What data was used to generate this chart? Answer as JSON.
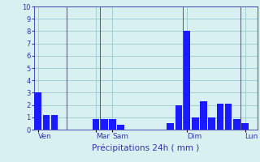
{
  "values": [
    3.0,
    1.2,
    1.2,
    0,
    0,
    0,
    0,
    0.85,
    0.85,
    0.85,
    0.4,
    0,
    0,
    0,
    0,
    0,
    0.5,
    2.0,
    8.0,
    1.0,
    2.3,
    1.0,
    2.1,
    2.1,
    0.85,
    0.5
  ],
  "n_bars": 26,
  "day_labels": [
    "Ven",
    "Mar",
    "Sam",
    "Dim",
    "Lun"
  ],
  "xlabel": "Précipitations 24h ( mm )",
  "ylim": [
    0,
    10
  ],
  "yticks": [
    0,
    1,
    2,
    3,
    4,
    5,
    6,
    7,
    8,
    9,
    10
  ],
  "bar_color": "#1a1aff",
  "background_color": "#d8f0f0",
  "grid_color": "#99cccc",
  "label_color": "#3333aa",
  "vline_color": "#555577",
  "vline_positions": [
    3.5,
    7.5,
    17.5,
    24.5
  ],
  "xlim_left": -0.5,
  "xlim_right": 26.5
}
